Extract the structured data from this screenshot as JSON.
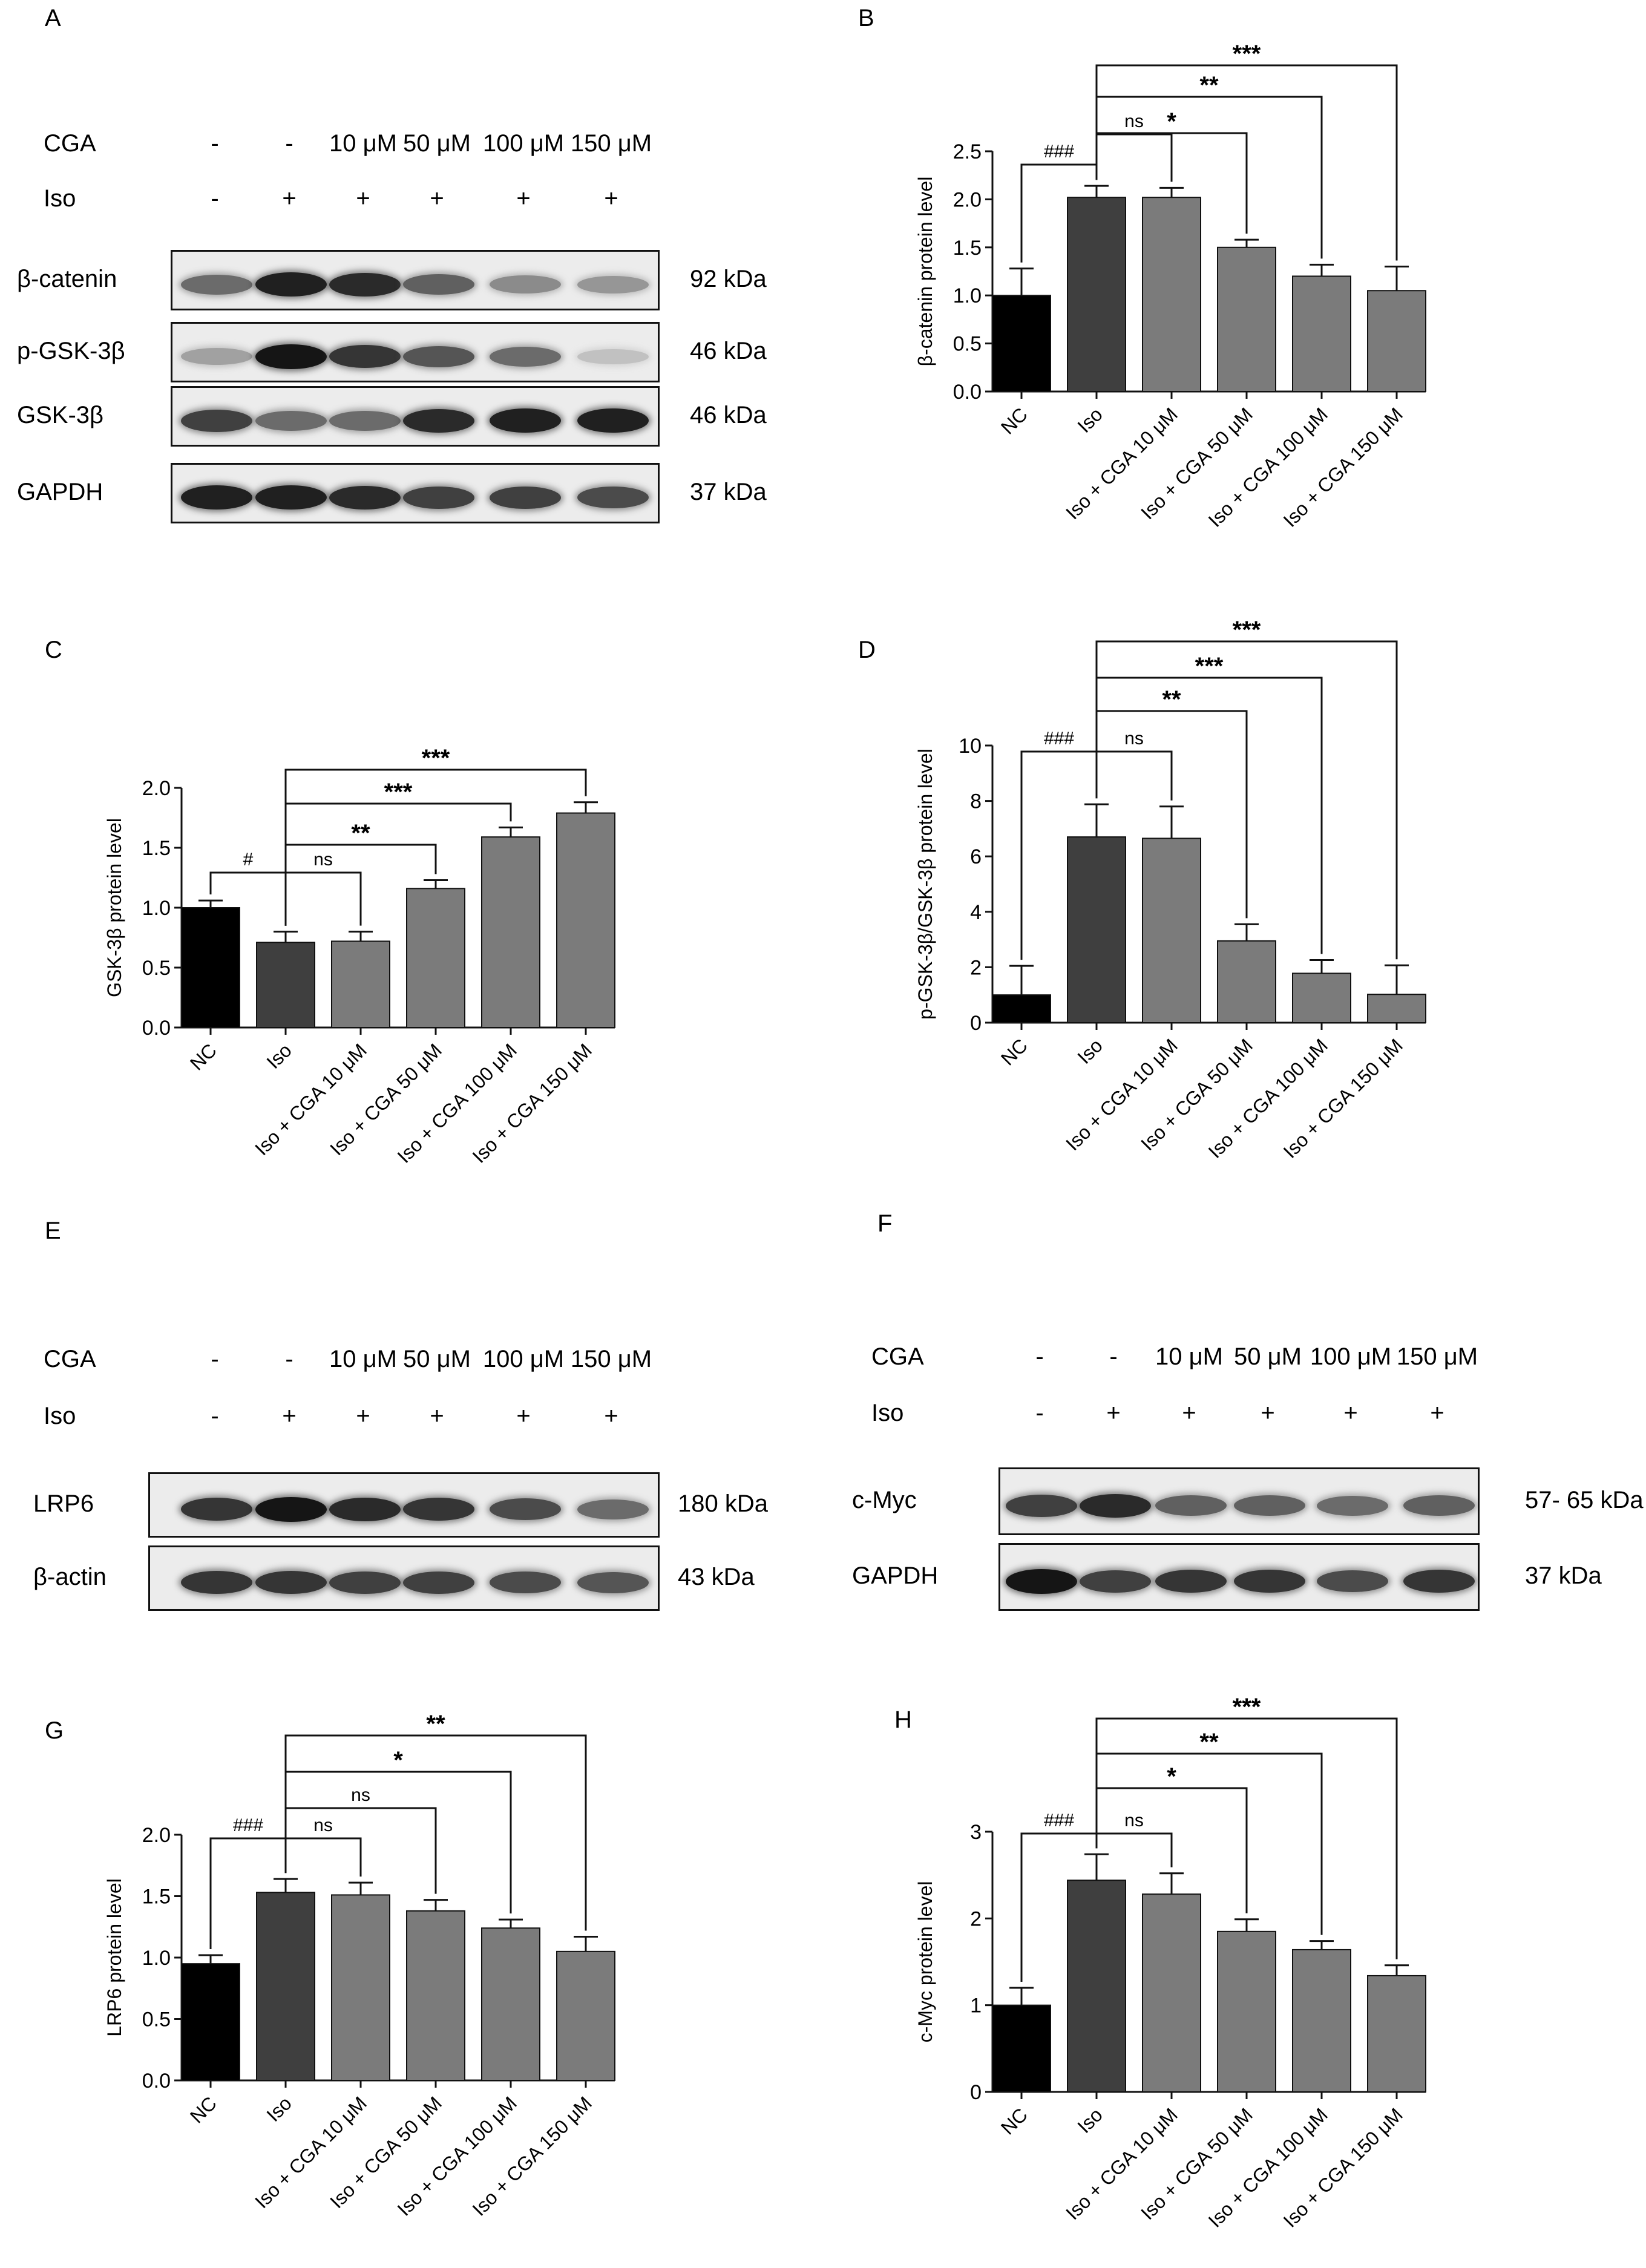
{
  "panel_letters": {
    "a": "A",
    "b": "B",
    "c": "C",
    "d": "D",
    "e": "E",
    "f": "F",
    "g": "G",
    "h": "H"
  },
  "blot_a": {
    "treatments": [
      {
        "label": "CGA",
        "values": [
          "-",
          "-",
          "10 μM",
          "50 μM",
          "100 μM",
          "150 μM"
        ]
      },
      {
        "label": "Iso",
        "values": [
          "-",
          "+",
          "+",
          "+",
          "+",
          "+"
        ]
      }
    ],
    "rows": [
      {
        "protein": "β-catenin",
        "weight": "92 kDa",
        "intensities": [
          0.55,
          0.9,
          0.85,
          0.6,
          0.4,
          0.35
        ]
      },
      {
        "protein": "p-GSK-3β",
        "weight": "46 kDa",
        "intensities": [
          0.3,
          0.95,
          0.8,
          0.65,
          0.55,
          0.15
        ]
      },
      {
        "protein": "GSK-3β",
        "weight": "46 kDa",
        "intensities": [
          0.75,
          0.55,
          0.55,
          0.85,
          0.9,
          0.9
        ]
      },
      {
        "protein": "GAPDH",
        "weight": "37 kDa",
        "intensities": [
          0.9,
          0.9,
          0.85,
          0.75,
          0.75,
          0.7
        ]
      }
    ]
  },
  "blot_e": {
    "treatments": [
      {
        "label": "CGA",
        "values": [
          "-",
          "-",
          "10 μM",
          "50 μM",
          "100 μM",
          "150 μM"
        ]
      },
      {
        "label": "Iso",
        "values": [
          "-",
          "+",
          "+",
          "+",
          "+",
          "+"
        ]
      }
    ],
    "rows": [
      {
        "protein": "LRP6",
        "weight": "180 kDa",
        "intensities": [
          0.8,
          0.95,
          0.85,
          0.8,
          0.7,
          0.55
        ]
      },
      {
        "protein": "β-actin",
        "weight": "43 kDa",
        "intensities": [
          0.8,
          0.8,
          0.75,
          0.75,
          0.7,
          0.65
        ]
      }
    ]
  },
  "blot_f": {
    "treatments": [
      {
        "label": "CGA",
        "values": [
          "-",
          "-",
          "10 μM",
          "50 μM",
          "100 μM",
          "150 μM"
        ]
      },
      {
        "label": "Iso",
        "values": [
          "-",
          "+",
          "+",
          "+",
          "+",
          "+"
        ]
      }
    ],
    "rows": [
      {
        "protein": "c-Myc",
        "weight": "57- 65 kDa",
        "intensities": [
          0.75,
          0.85,
          0.6,
          0.6,
          0.55,
          0.6
        ]
      },
      {
        "protein": "GAPDH",
        "weight": "37 kDa",
        "intensities": [
          0.95,
          0.75,
          0.8,
          0.8,
          0.7,
          0.8
        ]
      }
    ]
  },
  "chart_data": [
    {
      "id": "B",
      "type": "bar",
      "ylabel": "β-catenin protein level",
      "categories": [
        "NC",
        "Iso",
        "Iso + CGA 10 μM",
        "Iso + CGA 50 μM",
        "Iso + CGA 100 μM",
        "Iso + CGA 150 μM"
      ],
      "values": [
        1.0,
        2.02,
        2.02,
        1.5,
        1.2,
        1.05
      ],
      "errors": [
        0.28,
        0.12,
        0.1,
        0.08,
        0.12,
        0.25
      ],
      "ylim": [
        0,
        2.5
      ],
      "yticks": [
        "0.0",
        "0.5",
        "1.0",
        "1.5",
        "2.0",
        "2.5"
      ],
      "colors": [
        "#000000",
        "#3f3f3f",
        "#7b7b7b",
        "#7b7b7b",
        "#7b7b7b",
        "#7b7b7b"
      ],
      "comparisons": [
        {
          "from": 0,
          "to": 1,
          "label": "###"
        },
        {
          "from": 1,
          "to": 2,
          "label": "ns"
        },
        {
          "from": 1,
          "to": 3,
          "label": "*"
        },
        {
          "from": 1,
          "to": 4,
          "label": "**"
        },
        {
          "from": 1,
          "to": 5,
          "label": "***"
        }
      ]
    },
    {
      "id": "C",
      "type": "bar",
      "ylabel": "GSK-3β protein level",
      "categories": [
        "NC",
        "Iso",
        "Iso + CGA 10 μM",
        "Iso + CGA 50 μM",
        "Iso + CGA 100 μM",
        "Iso + CGA 150 μM"
      ],
      "values": [
        1.0,
        0.71,
        0.72,
        1.16,
        1.59,
        1.79
      ],
      "errors": [
        0.06,
        0.09,
        0.08,
        0.07,
        0.08,
        0.09
      ],
      "ylim": [
        0,
        2.0
      ],
      "yticks": [
        "0.0",
        "0.5",
        "1.0",
        "1.5",
        "2.0"
      ],
      "colors": [
        "#000000",
        "#3f3f3f",
        "#7b7b7b",
        "#7b7b7b",
        "#7b7b7b",
        "#7b7b7b"
      ],
      "comparisons": [
        {
          "from": 0,
          "to": 1,
          "label": "#"
        },
        {
          "from": 1,
          "to": 2,
          "label": "ns"
        },
        {
          "from": 1,
          "to": 3,
          "label": "**"
        },
        {
          "from": 1,
          "to": 4,
          "label": "***"
        },
        {
          "from": 1,
          "to": 5,
          "label": "***"
        }
      ]
    },
    {
      "id": "D",
      "type": "bar",
      "ylabel": "p-GSK-3β/GSK-3β protein level",
      "categories": [
        "NC",
        "Iso",
        "Iso + CGA 10 μM",
        "Iso + CGA 50 μM",
        "Iso + CGA 100 μM",
        "Iso + CGA 150 μM"
      ],
      "values": [
        1.0,
        6.7,
        6.65,
        2.95,
        1.78,
        1.02
      ],
      "errors": [
        1.05,
        1.18,
        1.15,
        0.6,
        0.48,
        1.05
      ],
      "ylim": [
        0,
        10
      ],
      "yticks": [
        "0",
        "2",
        "4",
        "6",
        "8",
        "10"
      ],
      "colors": [
        "#000000",
        "#3f3f3f",
        "#7b7b7b",
        "#7b7b7b",
        "#7b7b7b",
        "#7b7b7b"
      ],
      "comparisons": [
        {
          "from": 0,
          "to": 1,
          "label": "###"
        },
        {
          "from": 1,
          "to": 2,
          "label": "ns"
        },
        {
          "from": 1,
          "to": 3,
          "label": "**"
        },
        {
          "from": 1,
          "to": 4,
          "label": "***"
        },
        {
          "from": 1,
          "to": 5,
          "label": "***"
        }
      ]
    },
    {
      "id": "G",
      "type": "bar",
      "ylabel": "LRP6 protein level",
      "categories": [
        "NC",
        "Iso",
        "Iso + CGA 10 μM",
        "Iso + CGA 50 μM",
        "Iso + CGA 100 μM",
        "Iso + CGA 150 μM"
      ],
      "values": [
        0.95,
        1.53,
        1.51,
        1.38,
        1.24,
        1.05
      ],
      "errors": [
        0.07,
        0.11,
        0.1,
        0.09,
        0.07,
        0.12
      ],
      "ylim": [
        0,
        2.0
      ],
      "yticks": [
        "0.0",
        "0.5",
        "1.0",
        "1.5",
        "2.0"
      ],
      "colors": [
        "#000000",
        "#3f3f3f",
        "#7b7b7b",
        "#7b7b7b",
        "#7b7b7b",
        "#7b7b7b"
      ],
      "comparisons": [
        {
          "from": 0,
          "to": 1,
          "label": "###"
        },
        {
          "from": 1,
          "to": 2,
          "label": "ns"
        },
        {
          "from": 1,
          "to": 3,
          "label": "ns"
        },
        {
          "from": 1,
          "to": 4,
          "label": "*"
        },
        {
          "from": 1,
          "to": 5,
          "label": "**"
        }
      ]
    },
    {
      "id": "H",
      "type": "bar",
      "ylabel": "c-Myc protein level",
      "categories": [
        "NC",
        "Iso",
        "Iso + CGA 10 μM",
        "Iso + CGA 50 μM",
        "Iso + CGA 100 μM",
        "Iso + CGA 150 μM"
      ],
      "values": [
        1.0,
        2.44,
        2.28,
        1.85,
        1.64,
        1.34
      ],
      "errors": [
        0.2,
        0.3,
        0.24,
        0.14,
        0.1,
        0.12
      ],
      "ylim": [
        0,
        3
      ],
      "yticks": [
        "0",
        "1",
        "2",
        "3"
      ],
      "colors": [
        "#000000",
        "#3f3f3f",
        "#7b7b7b",
        "#7b7b7b",
        "#7b7b7b",
        "#7b7b7b"
      ],
      "comparisons": [
        {
          "from": 0,
          "to": 1,
          "label": "###"
        },
        {
          "from": 1,
          "to": 2,
          "label": "ns"
        },
        {
          "from": 1,
          "to": 3,
          "label": "*"
        },
        {
          "from": 1,
          "to": 4,
          "label": "**"
        },
        {
          "from": 1,
          "to": 5,
          "label": "***"
        }
      ]
    }
  ]
}
